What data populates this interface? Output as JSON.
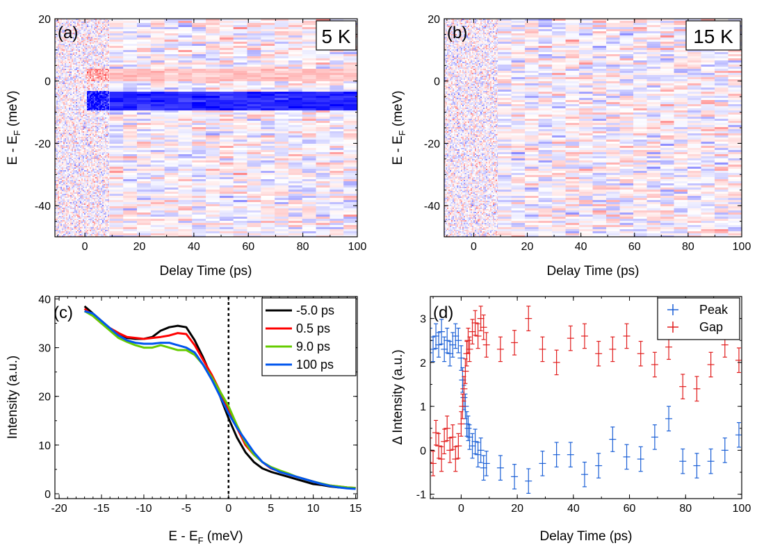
{
  "chart_data": [
    {
      "panel": "a",
      "panel_label": "(a)",
      "type": "heatmap",
      "temperature_label": "5 K",
      "xlabel": "Delay Time (ps)",
      "ylabel_main": "E - E",
      "ylabel_sub": "F",
      "ylabel_tail": " (meV)",
      "xlim": [
        -11,
        100
      ],
      "ylim": [
        -50,
        20
      ],
      "xticks": [
        0,
        20,
        40,
        60,
        80,
        100
      ],
      "yticks": [
        -40,
        -20,
        0,
        20
      ],
      "colormap": {
        "low": "#0000ff",
        "mid": "#ffffff",
        "high": "#ff0000"
      },
      "features": {
        "red_band_meV": [
          0,
          4
        ],
        "blue_band_meV": [
          -9,
          -3
        ],
        "noisy_region_ps": [
          -11,
          9
        ]
      }
    },
    {
      "panel": "b",
      "panel_label": "(b)",
      "type": "heatmap",
      "temperature_label": "15 K",
      "xlabel": "Delay Time (ps)",
      "ylabel_main": "E - E",
      "ylabel_sub": "F",
      "ylabel_tail": " (meV)",
      "xlim": [
        -11,
        100
      ],
      "ylim": [
        -50,
        20
      ],
      "xticks": [
        0,
        20,
        40,
        60,
        80,
        100
      ],
      "yticks": [
        -40,
        -20,
        0,
        20
      ],
      "colormap": {
        "low": "#0000ff",
        "mid": "#ffffff",
        "high": "#ff0000"
      },
      "features": {
        "noisy_region_ps": [
          -11,
          9
        ]
      }
    },
    {
      "panel": "c",
      "panel_label": "(c)",
      "type": "line",
      "xlabel_main": "E - E",
      "xlabel_sub": "F",
      "xlabel_tail": " (meV)",
      "ylabel": "Intensity (a.u.)",
      "xlim": [
        -20.5,
        15.2
      ],
      "ylim": [
        -1,
        40.5
      ],
      "xticks": [
        -20,
        -15,
        -10,
        -5,
        0,
        5,
        10,
        15
      ],
      "yticks": [
        0,
        10,
        20,
        30,
        40
      ],
      "fermi_level_x": 0,
      "x": [
        -17,
        -16,
        -15,
        -14,
        -13,
        -12,
        -11,
        -10,
        -9,
        -8,
        -7,
        -6,
        -5,
        -4,
        -3,
        -2,
        -1,
        0,
        1,
        2,
        3,
        4,
        5,
        6,
        7,
        8,
        9,
        10,
        11,
        12,
        13,
        14,
        15
      ],
      "series": [
        {
          "name": "-5.0 ps",
          "color": "#000000",
          "values": [
            38.5,
            37,
            35.5,
            34,
            33,
            32,
            31.8,
            31.8,
            32.2,
            33.5,
            34.2,
            34.5,
            34.2,
            31.5,
            28,
            24,
            20,
            15.5,
            11.5,
            8.5,
            6.5,
            5.2,
            4.5,
            4,
            3.5,
            3,
            2.5,
            2,
            1.8,
            1.5,
            1.3,
            1.2,
            1.1
          ]
        },
        {
          "name": "0.5 ps",
          "color": "#ff0000",
          "values": [
            38,
            36.5,
            35,
            34,
            33,
            32.2,
            32,
            31.8,
            32,
            32.2,
            32.5,
            33,
            32.8,
            30.5,
            27.5,
            24.5,
            21,
            17,
            13.5,
            10,
            8,
            6.5,
            5.2,
            4.6,
            4,
            3.5,
            3,
            2.5,
            2,
            1.7,
            1.5,
            1.3,
            1.2
          ]
        },
        {
          "name": "9.0 ps",
          "color": "#66cc00",
          "values": [
            37.5,
            36.5,
            35,
            33.5,
            32,
            31.2,
            30.5,
            30,
            30,
            30.5,
            30,
            29.5,
            29.5,
            28.5,
            26.5,
            24,
            21,
            18,
            14,
            10.5,
            8,
            6.5,
            5.5,
            4.8,
            4.2,
            3.5,
            3,
            2.5,
            2.1,
            1.7,
            1.5,
            1.3,
            1.2
          ]
        },
        {
          "name": "100 ps",
          "color": "#0055ee",
          "values": [
            37.5,
            37,
            35.5,
            34,
            32.5,
            31.5,
            31,
            30.8,
            30.8,
            31,
            31,
            30.5,
            30,
            29,
            26.5,
            23.5,
            20,
            16.5,
            13.5,
            11,
            8.5,
            6.5,
            5.3,
            4.5,
            4,
            3.5,
            3,
            2.5,
            2,
            1.6,
            1.3,
            1.1,
            1.0
          ]
        }
      ]
    },
    {
      "panel": "d",
      "panel_label": "(d)",
      "type": "scatter",
      "xlabel": "Delay Time (ps)",
      "ylabel": "Δ Intensity (a.u.)",
      "xlim": [
        -11,
        100
      ],
      "ylim": [
        -1.1,
        3.5
      ],
      "xticks": [
        0,
        20,
        40,
        60,
        80,
        100
      ],
      "yticks": [
        -1,
        0,
        1,
        2,
        3
      ],
      "error_bar": 0.28,
      "series": [
        {
          "name": "Peak",
          "color": "#1a5fd6",
          "x": [
            -11,
            -10,
            -9,
            -8,
            -7,
            -6,
            -5,
            -4,
            -3,
            -2,
            -1,
            0,
            0.5,
            1,
            1.5,
            2,
            2.5,
            3,
            4,
            5,
            6,
            7,
            8,
            9,
            14,
            19,
            24,
            29,
            34,
            39,
            44,
            49,
            54,
            59,
            64,
            69,
            74,
            79,
            84,
            89,
            94,
            99
          ],
          "y": [
            2.5,
            2.3,
            2.6,
            2.4,
            2.7,
            2.3,
            2.5,
            2.2,
            2.4,
            2.6,
            2.5,
            2.1,
            1.6,
            1.2,
            1.0,
            0.6,
            0.5,
            0.3,
            0.1,
            0.2,
            -0.1,
            0.0,
            -0.4,
            -0.3,
            -0.4,
            -0.6,
            -0.7,
            -0.3,
            -0.1,
            -0.1,
            -0.55,
            -0.35,
            0.25,
            -0.15,
            -0.2,
            0.3,
            0.72,
            -0.25,
            -0.35,
            -0.25,
            0.0,
            0.35
          ]
        },
        {
          "name": "Gap",
          "color": "#e11b1b",
          "x": [
            -11,
            -10,
            -9,
            -8,
            -7,
            -6,
            -5,
            -4,
            -3,
            -2,
            -1,
            0,
            0.5,
            1,
            1.5,
            2,
            2.5,
            3,
            4,
            5,
            6,
            7,
            8,
            9,
            14,
            19,
            24,
            29,
            34,
            39,
            44,
            49,
            54,
            59,
            64,
            69,
            74,
            79,
            84,
            89,
            94,
            99
          ],
          "y": [
            0.0,
            -0.3,
            0.4,
            0.1,
            -0.2,
            0.2,
            0.5,
            0.0,
            0.3,
            -0.2,
            0.1,
            0.6,
            1.0,
            1.4,
            1.8,
            2.2,
            2.5,
            2.3,
            2.7,
            2.9,
            2.6,
            3.0,
            2.8,
            2.4,
            2.3,
            2.45,
            3.0,
            2.3,
            2.0,
            2.55,
            2.6,
            2.2,
            2.3,
            2.6,
            2.2,
            1.95,
            2.35,
            1.45,
            1.4,
            1.95,
            2.4,
            2.05
          ]
        }
      ]
    }
  ]
}
